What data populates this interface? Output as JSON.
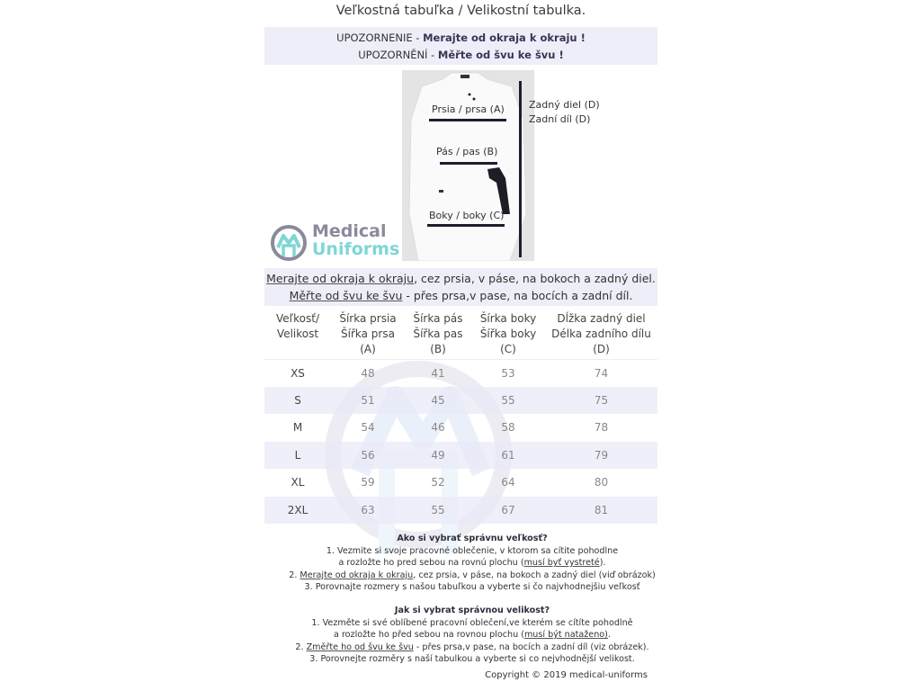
{
  "title": "Veľkostná tabuľka / Velikostní tabulka.",
  "notice": [
    {
      "prefix": "UPOZORNENIE  - ",
      "bold": "Merajte od okraja k okraju !"
    },
    {
      "prefix": "UPOZORNĚNÍ  - ",
      "bold": "Měřte od švu ke švu !"
    }
  ],
  "diagram": {
    "chest": "Prsia / prsa (A)",
    "waist": "Pás / pas (B)",
    "hips": "Boky / boky (C)",
    "back_sk": "Zadný diel (D)",
    "back_cz": "Zadní díl (D)"
  },
  "logo": {
    "line1": "Medical",
    "line2": "Uniforms",
    "color1": "#8a8a9c",
    "color2": "#7fd6d6"
  },
  "measure": [
    {
      "u": "Merajte od okraja k okraju",
      "rest": ", cez prsia, v páse, na bokoch a zadný diel."
    },
    {
      "u": "Měřte od švu ke švu",
      "rest": " - přes prsa,v pase, na bocích a zadní díl."
    }
  ],
  "table": {
    "headers": [
      [
        "Veľkosť/",
        "Velikost",
        ""
      ],
      [
        "Šírka prsia",
        "Šířka prsa",
        "(A)"
      ],
      [
        "Šírka pás",
        "Šířka pas",
        "(B)"
      ],
      [
        "Šírka boky",
        "Šířka boky",
        "(C)"
      ],
      [
        "Dĺžka zadný diel",
        "Délka zadního dílu",
        "(D)"
      ]
    ],
    "rows": [
      [
        "XS",
        "48",
        "41",
        "53",
        "74"
      ],
      [
        "S",
        "51",
        "45",
        "55",
        "75"
      ],
      [
        "M",
        "54",
        "46",
        "58",
        "78"
      ],
      [
        "L",
        "56",
        "49",
        "61",
        "79"
      ],
      [
        "XL",
        "59",
        "52",
        "64",
        "80"
      ],
      [
        "2XL",
        "63",
        "55",
        "67",
        "81"
      ]
    ]
  },
  "howto_sk": {
    "heading": "Ako si vybrať správnu veľkosť?",
    "l1": "1. Vezmite si svoje pracovné oblečenie, v ktorom sa cítite pohodlne",
    "l2a": "a rozložte ho pred sebou na rovnú plochu (",
    "l2u": "musí byť vystreté",
    "l2b": ").",
    "l3a": "2. ",
    "l3u": "Merajte od okraja k okraju",
    "l3b": ", cez prsia, v páse, na bokoch a zadný diel (viď obrázok)",
    "l4": "3. Porovnajte rozmery s našou tabuľkou a vyberte si čo najvhodnejšiu veľkosť"
  },
  "howto_cz": {
    "heading": "Jak si vybrat správnou velikost?",
    "l1": "1. Vezměte si své oblíbené pracovní oblečení,ve kterém se cítíte pohodlně",
    "l2a": "a rozložte ho před sebou na rovnou plochu (",
    "l2u": "musí být nataženo)",
    "l2b": ".",
    "l3a": "2. ",
    "l3u": "Změřte ho od švu ke švu",
    "l3b": " - přes prsa,v pase, na bocích a zadní díl (viz obrázek).",
    "l4": "3. Porovnejte rozměry s naší tabulkou a vyberte si co nejvhodnější velikost."
  },
  "copyright": "Copyright © 2019 medical-uniforms"
}
